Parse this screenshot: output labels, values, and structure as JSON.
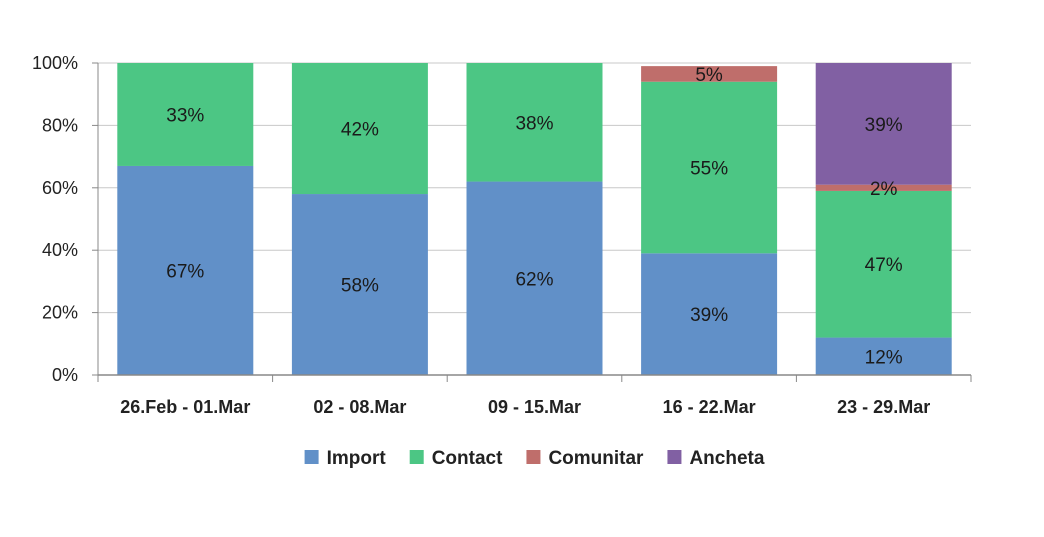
{
  "chart_data": {
    "type": "bar",
    "stacked": true,
    "percent": true,
    "categories": [
      "26.Feb - 01.Mar",
      "02 - 08.Mar",
      "09 - 15.Mar",
      "16 - 22.Mar",
      "23 - 29.Mar"
    ],
    "series": [
      {
        "name": "Import",
        "color": "#6190c8",
        "values": [
          67,
          58,
          62,
          39,
          12
        ],
        "labels": [
          "67%",
          "58%",
          "62%",
          "39%",
          "12%"
        ]
      },
      {
        "name": "Contact",
        "color": "#4cc684",
        "values": [
          33,
          42,
          38,
          55,
          47
        ],
        "labels": [
          "33%",
          "42%",
          "38%",
          "55%",
          "47%"
        ]
      },
      {
        "name": "Comunitar",
        "color": "#bf6e6b",
        "values": [
          0,
          0,
          0,
          5,
          2
        ],
        "labels": [
          "",
          "",
          "",
          "5%",
          "2%"
        ]
      },
      {
        "name": "Ancheta",
        "color": "#8160a3",
        "values": [
          0,
          0,
          0,
          0,
          39
        ],
        "labels": [
          "",
          "",
          "",
          "",
          "39%"
        ]
      }
    ],
    "y_ticks": [
      "0%",
      "20%",
      "40%",
      "60%",
      "80%",
      "100%"
    ],
    "ylim": [
      0,
      100
    ],
    "grid": true,
    "legend_position": "bottom",
    "title": "",
    "xlabel": "",
    "ylabel": ""
  }
}
